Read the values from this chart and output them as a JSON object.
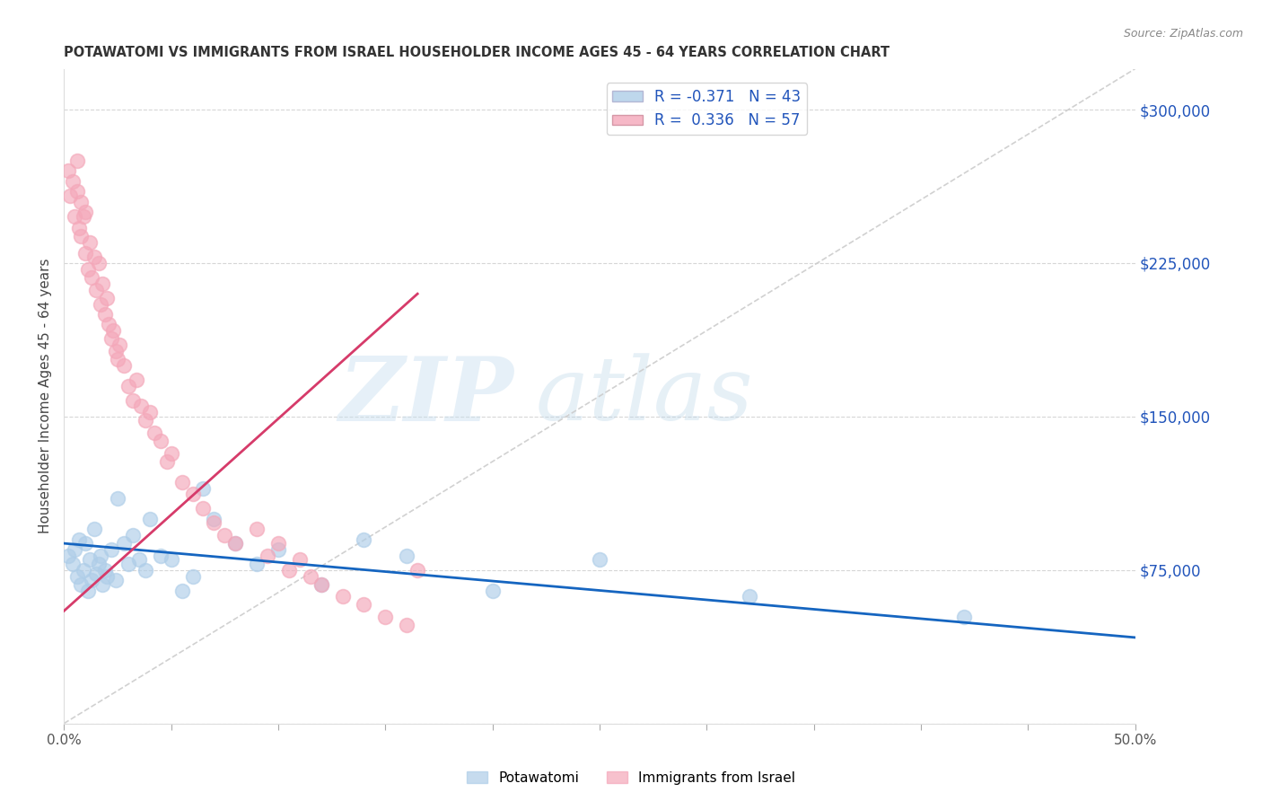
{
  "title": "POTAWATOMI VS IMMIGRANTS FROM ISRAEL HOUSEHOLDER INCOME AGES 45 - 64 YEARS CORRELATION CHART",
  "source": "Source: ZipAtlas.com",
  "ylabel": "Householder Income Ages 45 - 64 years",
  "yticks": [
    0,
    75000,
    150000,
    225000,
    300000
  ],
  "ytick_labels": [
    "",
    "$75,000",
    "$150,000",
    "$225,000",
    "$300,000"
  ],
  "xlim": [
    0.0,
    0.5
  ],
  "ylim": [
    0,
    320000
  ],
  "blue_color": "#aecde8",
  "pink_color": "#f4a7b9",
  "blue_line_color": "#1565c0",
  "pink_line_color": "#d63b6a",
  "diag_line_color": "#cccccc",
  "watermark_zip": "ZIP",
  "watermark_atlas": "atlas",
  "legend_blue_label": "R = -0.371   N = 43",
  "legend_pink_label": "R =  0.336   N = 57",
  "legend_blue_color": "#aecde8",
  "legend_pink_color": "#f4a7b9",
  "blue_scatter_x": [
    0.002,
    0.004,
    0.005,
    0.006,
    0.007,
    0.008,
    0.009,
    0.01,
    0.011,
    0.012,
    0.013,
    0.014,
    0.015,
    0.016,
    0.017,
    0.018,
    0.019,
    0.02,
    0.022,
    0.024,
    0.025,
    0.028,
    0.03,
    0.032,
    0.035,
    0.038,
    0.04,
    0.045,
    0.05,
    0.055,
    0.06,
    0.065,
    0.07,
    0.08,
    0.09,
    0.1,
    0.12,
    0.14,
    0.16,
    0.2,
    0.25,
    0.32,
    0.42
  ],
  "blue_scatter_y": [
    82000,
    78000,
    85000,
    72000,
    90000,
    68000,
    75000,
    88000,
    65000,
    80000,
    70000,
    95000,
    73000,
    78000,
    82000,
    68000,
    75000,
    72000,
    85000,
    70000,
    110000,
    88000,
    78000,
    92000,
    80000,
    75000,
    100000,
    82000,
    80000,
    65000,
    72000,
    115000,
    100000,
    88000,
    78000,
    85000,
    68000,
    90000,
    82000,
    65000,
    80000,
    62000,
    52000
  ],
  "pink_scatter_x": [
    0.002,
    0.003,
    0.004,
    0.005,
    0.006,
    0.006,
    0.007,
    0.008,
    0.008,
    0.009,
    0.01,
    0.01,
    0.011,
    0.012,
    0.013,
    0.014,
    0.015,
    0.016,
    0.017,
    0.018,
    0.019,
    0.02,
    0.021,
    0.022,
    0.023,
    0.024,
    0.025,
    0.026,
    0.028,
    0.03,
    0.032,
    0.034,
    0.036,
    0.038,
    0.04,
    0.042,
    0.045,
    0.048,
    0.05,
    0.055,
    0.06,
    0.065,
    0.07,
    0.075,
    0.08,
    0.09,
    0.095,
    0.1,
    0.105,
    0.11,
    0.115,
    0.12,
    0.13,
    0.14,
    0.15,
    0.16,
    0.165
  ],
  "pink_scatter_y": [
    270000,
    258000,
    265000,
    248000,
    260000,
    275000,
    242000,
    255000,
    238000,
    248000,
    230000,
    250000,
    222000,
    235000,
    218000,
    228000,
    212000,
    225000,
    205000,
    215000,
    200000,
    208000,
    195000,
    188000,
    192000,
    182000,
    178000,
    185000,
    175000,
    165000,
    158000,
    168000,
    155000,
    148000,
    152000,
    142000,
    138000,
    128000,
    132000,
    118000,
    112000,
    105000,
    98000,
    92000,
    88000,
    95000,
    82000,
    88000,
    75000,
    80000,
    72000,
    68000,
    62000,
    58000,
    52000,
    48000,
    75000
  ],
  "blue_trend_x": [
    0.0,
    0.5
  ],
  "blue_trend_y": [
    88000,
    42000
  ],
  "pink_trend_x": [
    0.0,
    0.165
  ],
  "pink_trend_y": [
    55000,
    210000
  ]
}
